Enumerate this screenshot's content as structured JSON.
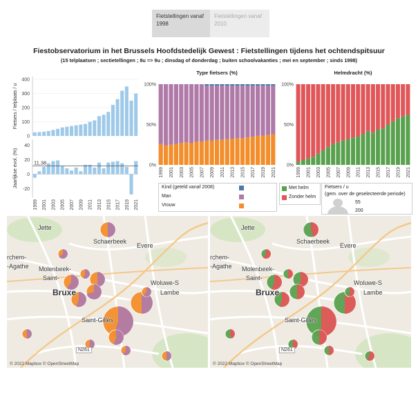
{
  "tabs": [
    {
      "label": "Fietstellingen vanaf 1998",
      "active": true
    },
    {
      "label": "Fietstellingen vanaf 2010",
      "active": false
    }
  ],
  "title": "Fiestobservatorium in het Brussels Hoofdstedelijk Gewest : Fietstellingen tijdens het ochtendspitsuur",
  "subtitle": "(15 telplaatsen ; sectietellingen ; 8u => 9u ; dinsdag of donderdag ; buiten schoolvakanties ;  mei en september ; sinds 1998)",
  "panels": {
    "type_title": "Type fietsers (%)",
    "helm_title": "Helmdracht (%)"
  },
  "colors": {
    "bar_blue": "#9ec9e9",
    "man": "#b07aa8",
    "vrouw": "#f28e2b",
    "kind": "#4e79a7",
    "met_helm": "#59a14f",
    "zonder_helm": "#e15759"
  },
  "chart_data": [
    {
      "type": "bar",
      "ylabel": "Fietsers / telplaats / u",
      "yticks": [
        0,
        100,
        200,
        300,
        400
      ],
      "ylim": [
        0,
        420
      ],
      "years": [
        "1999",
        "2000",
        "2001",
        "2002",
        "2003",
        "2004",
        "2005",
        "2006",
        "2007",
        "2008",
        "2009",
        "2010",
        "2011",
        "2012",
        "2013",
        "2014",
        "2015",
        "2016",
        "2017",
        "2018",
        "2019",
        "2020",
        "2021"
      ],
      "values": [
        25,
        27,
        30,
        35,
        42,
        50,
        60,
        65,
        70,
        75,
        80,
        85,
        100,
        110,
        140,
        150,
        170,
        220,
        260,
        320,
        350,
        250,
        300
      ]
    },
    {
      "type": "bar",
      "ylabel": "Jaarlijkse evol. (%)",
      "yticks": [
        -20,
        0,
        20,
        40
      ],
      "ylim": [
        -32,
        48
      ],
      "reference_label": "11,38",
      "reference_value": 11.38,
      "xticks": [
        "1999",
        "2001",
        "2003",
        "2005",
        "2007",
        "2009",
        "2011",
        "2013",
        "2015",
        "2017",
        "2019",
        "2021"
      ],
      "values": [
        -5,
        4,
        10,
        15,
        18,
        19,
        11,
        8,
        5,
        9,
        4,
        13,
        13,
        9,
        16,
        8,
        16,
        17,
        18,
        15,
        10,
        -28,
        18
      ]
    },
    {
      "type": "bar",
      "stacked": true,
      "title": "Type fietsers (%)",
      "yticks": [
        "0%",
        "50%",
        "100%"
      ],
      "years": [
        "1999",
        "2000",
        "2001",
        "2002",
        "2003",
        "2004",
        "2005",
        "2006",
        "2007",
        "2008",
        "2009",
        "2010",
        "2011",
        "2012",
        "2013",
        "2014",
        "2015",
        "2016",
        "2017",
        "2018",
        "2019",
        "2020",
        "2021"
      ],
      "xticks": [
        "1999",
        "2001",
        "2003",
        "2005",
        "2007",
        "2009",
        "2011",
        "2013",
        "2015",
        "2017",
        "2019",
        "2021"
      ],
      "series": [
        {
          "name": "Vrouw",
          "values": [
            26,
            24,
            25,
            26,
            27,
            28,
            27,
            29,
            29,
            30,
            30,
            31,
            31,
            32,
            32,
            33,
            33,
            34,
            35,
            36,
            36,
            37,
            38
          ]
        },
        {
          "name": "Man",
          "values": [
            74,
            76,
            75,
            74,
            73,
            72,
            73,
            71,
            71,
            68,
            68,
            67,
            67,
            66,
            66,
            65,
            65,
            64,
            63,
            62,
            62,
            61,
            60
          ]
        },
        {
          "name": "Kind (geteld vanaf 2008)",
          "values": [
            0,
            0,
            0,
            0,
            0,
            0,
            0,
            0,
            0,
            2,
            2,
            2,
            2,
            2,
            2,
            2,
            2,
            2,
            2,
            2,
            2,
            2,
            2
          ]
        }
      ]
    },
    {
      "type": "bar",
      "stacked": true,
      "title": "Helmdracht (%)",
      "yticks": [
        "0%",
        "50%",
        "100%"
      ],
      "years": [
        "1999",
        "2000",
        "2001",
        "2002",
        "2003",
        "2004",
        "2005",
        "2006",
        "2007",
        "2008",
        "2009",
        "2010",
        "2011",
        "2012",
        "2013",
        "2014",
        "2015",
        "2016",
        "2017",
        "2018",
        "2019",
        "2020",
        "2021"
      ],
      "xticks": [
        "1999",
        "2001",
        "2003",
        "2005",
        "2007",
        "2009",
        "2011",
        "2013",
        "2015",
        "2017",
        "2019",
        "2021"
      ],
      "series": [
        {
          "name": "Met helm",
          "values": [
            4,
            6,
            8,
            10,
            14,
            18,
            22,
            26,
            28,
            30,
            32,
            34,
            35,
            38,
            42,
            40,
            44,
            45,
            50,
            54,
            58,
            60,
            62
          ]
        },
        {
          "name": "Zonder helm",
          "values": [
            96,
            94,
            92,
            90,
            86,
            82,
            78,
            74,
            72,
            70,
            68,
            66,
            65,
            62,
            58,
            60,
            56,
            55,
            50,
            46,
            42,
            40,
            38
          ]
        }
      ]
    }
  ],
  "legend_type": [
    {
      "label": "Kind (geteld vanaf 2008)",
      "color": "#4e79a7"
    },
    {
      "label": "Man",
      "color": "#b07aa8"
    },
    {
      "label": "Vrouw",
      "color": "#f28e2b"
    }
  ],
  "legend_helm": [
    {
      "label": "Met helm",
      "color": "#59a14f"
    },
    {
      "label": "Zonder helm",
      "color": "#e15759"
    }
  ],
  "legend_size": {
    "title_line1": "Fietsers / u",
    "title_line2": "(gem. over de geselecteerde periode)",
    "values": [
      "55",
      "200"
    ]
  },
  "map": {
    "labels": [
      "Jette",
      "Schaerbeek",
      "Evere",
      "Molenbeek-",
      "Saint-",
      "rchem-",
      "-Agathe",
      "Bruxe",
      "Woluwe-S",
      "Lambe",
      "Saint-Gilles",
      "N261"
    ],
    "attribution": "© 2022 Mapbox © OpenStreetMap"
  },
  "map_pies": [
    {
      "id": "p1",
      "share_a": 0.5,
      "share_b": 0.45,
      "size": "m"
    },
    {
      "id": "p2",
      "share_a": 0.65,
      "share_b": 0.6,
      "size": "s"
    },
    {
      "id": "p3",
      "share_a": 0.55,
      "share_b": 0.5,
      "size": "s"
    },
    {
      "id": "p4",
      "share_a": 0.6,
      "share_b": 0.55,
      "size": "m"
    },
    {
      "id": "p5",
      "share_a": 0.5,
      "share_b": 0.5,
      "size": "m"
    },
    {
      "id": "p6",
      "share_a": 0.7,
      "share_b": 0.5,
      "size": "m"
    },
    {
      "id": "p7",
      "share_a": 0.55,
      "share_b": 0.55,
      "size": "m"
    },
    {
      "id": "p8",
      "share_a": 0.5,
      "share_b": 0.45,
      "size": "s"
    },
    {
      "id": "p9",
      "share_a": 0.55,
      "share_b": 0.5,
      "size": "xl"
    },
    {
      "id": "p10",
      "share_a": 0.5,
      "share_b": 0.5,
      "size": "l"
    },
    {
      "id": "p11",
      "share_a": 0.55,
      "share_b": 0.5,
      "size": "m"
    },
    {
      "id": "p12",
      "share_a": 0.6,
      "share_b": 0.5,
      "size": "s"
    },
    {
      "id": "p13",
      "share_a": 0.55,
      "share_b": 0.5,
      "size": "s"
    },
    {
      "id": "p14",
      "share_a": 0.6,
      "share_b": 0.5,
      "size": "s"
    },
    {
      "id": "p15",
      "share_a": 0.5,
      "share_b": 0.6,
      "size": "s"
    }
  ]
}
